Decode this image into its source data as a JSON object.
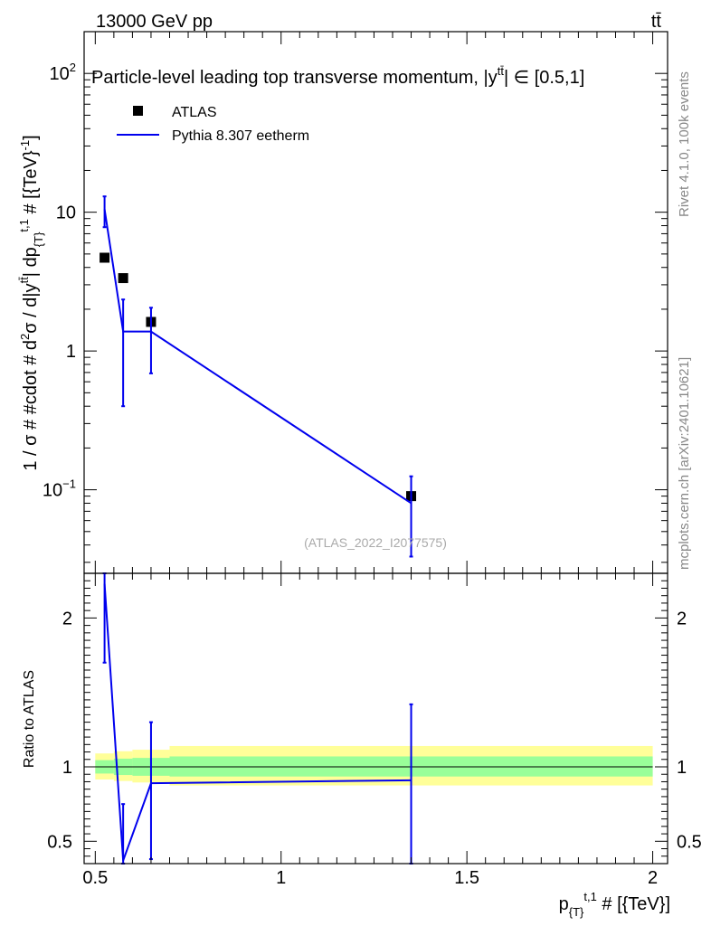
{
  "header": {
    "energy_label": "13000 GeV pp",
    "process_label": "tt̄"
  },
  "side_labels": {
    "rivet": "Rivet 4.1.0,  100k events",
    "mcplots": "mcplots.cern.ch [arXiv:2401.10621]"
  },
  "chart_data": [
    {
      "type": "line",
      "title": "Particle-level leading top transverse momentum, |y^{tt̄}| ∈ [0.5,1]",
      "title_main": "Particle-level leading top transverse momentum, |y",
      "title_sup": "tt̄",
      "title_tail": "| ∈ [0.5,1]",
      "ylabel": "1 / σ # #cdot # d²σ / d|y^{tt̄}| dp_{T}^{t,1} # [{TeV}⁻¹]",
      "ylabel_parts": {
        "a": "1 / σ # #cdot # d",
        "b": "2",
        "c": "σ / d|y",
        "d": "tt̄",
        "e": "| dp",
        "f": "{T}",
        "g": "t,1",
        "h": " # [{TeV}",
        "i": "-1",
        "j": "]"
      },
      "yscale": "log",
      "ylim": [
        0.025,
        200
      ],
      "xlim": [
        0.47,
        2.04
      ],
      "yticks": [
        {
          "value": 100,
          "base": "10",
          "exp": "2"
        },
        {
          "value": 10,
          "base": "10",
          "exp": ""
        },
        {
          "value": 1,
          "base": "1",
          "exp": ""
        },
        {
          "value": 0.1,
          "base": "10",
          "exp": "−1"
        }
      ],
      "legend": {
        "position": "top-left",
        "entries": [
          "ATLAS",
          "Pythia 8.307 eetherm"
        ]
      },
      "watermark": "(ATLAS_2022_I2077575)",
      "series": [
        {
          "name": "ATLAS",
          "style": "markers",
          "points": [
            {
              "x": 0.525,
              "y": 4.7
            },
            {
              "x": 0.575,
              "y": 3.35
            },
            {
              "x": 0.65,
              "y": 1.62
            },
            {
              "x": 1.35,
              "y": 0.09
            }
          ]
        },
        {
          "name": "Pythia 8.307 eetherm",
          "style": "line",
          "color": "#0000ee",
          "points": [
            {
              "x": 0.525,
              "y": 10.5,
              "ylo": 7.8,
              "yhi": 13.0
            },
            {
              "x": 0.575,
              "y": 1.38,
              "ylo": 0.4,
              "yhi": 2.35
            },
            {
              "x": 0.65,
              "y": 1.38,
              "ylo": 0.69,
              "yhi": 2.05
            },
            {
              "x": 1.35,
              "y": 0.08,
              "ylo": 0.033,
              "yhi": 0.125
            }
          ],
          "steps": [
            {
              "x0": 0.575,
              "x1": 0.65,
              "y": 1.38
            }
          ]
        }
      ]
    },
    {
      "type": "line",
      "ylabel": "Ratio to ATLAS",
      "xlabel": "p_{T}^{t,1} # [{TeV}]",
      "xlabel_parts": {
        "a": "p",
        "b": "{T}",
        "c": "t,1",
        "d": " # [{TeV}]"
      },
      "ylim": [
        0.35,
        2.3
      ],
      "xlim": [
        0.47,
        2.04
      ],
      "yticks": [
        2,
        1,
        0.5
      ],
      "ytick_labels": [
        "2",
        "1",
        "0.5"
      ],
      "xticks": [
        0.5,
        1,
        1.5,
        2
      ],
      "xtick_labels": [
        "0.5",
        "1",
        "1.5",
        "2"
      ],
      "reference_line": 1,
      "uncertainty_bands": [
        {
          "x0": 0.5,
          "x1": 0.55,
          "inner": [
            0.955,
            1.045
          ],
          "outer": [
            0.915,
            1.09
          ]
        },
        {
          "x0": 0.55,
          "x1": 0.6,
          "inner": [
            0.945,
            1.055
          ],
          "outer": [
            0.905,
            1.105
          ]
        },
        {
          "x0": 0.6,
          "x1": 0.7,
          "inner": [
            0.94,
            1.06
          ],
          "outer": [
            0.895,
            1.115
          ]
        },
        {
          "x0": 0.7,
          "x1": 2.0,
          "inner": [
            0.935,
            1.07
          ],
          "outer": [
            0.875,
            1.14
          ]
        }
      ],
      "series": [
        {
          "name": "Pythia 8.307 eetherm / ATLAS",
          "color": "#0000ee",
          "points": [
            {
              "x": 0.525,
              "y": 2.23,
              "ylo": 1.7,
              "yhi": 2.3
            },
            {
              "x": 0.575,
              "y": 0.37,
              "ylo": 0.35,
              "yhi": 0.75
            },
            {
              "x": 0.65,
              "y": 0.89,
              "ylo": 0.38,
              "yhi": 1.3
            },
            {
              "x": 1.35,
              "y": 0.91,
              "ylo": 0.35,
              "yhi": 1.42
            }
          ],
          "steps": [
            {
              "x0": 0.65,
              "x1": 1.35,
              "y": 0.89,
              "y2": 0.91
            }
          ]
        }
      ]
    }
  ]
}
